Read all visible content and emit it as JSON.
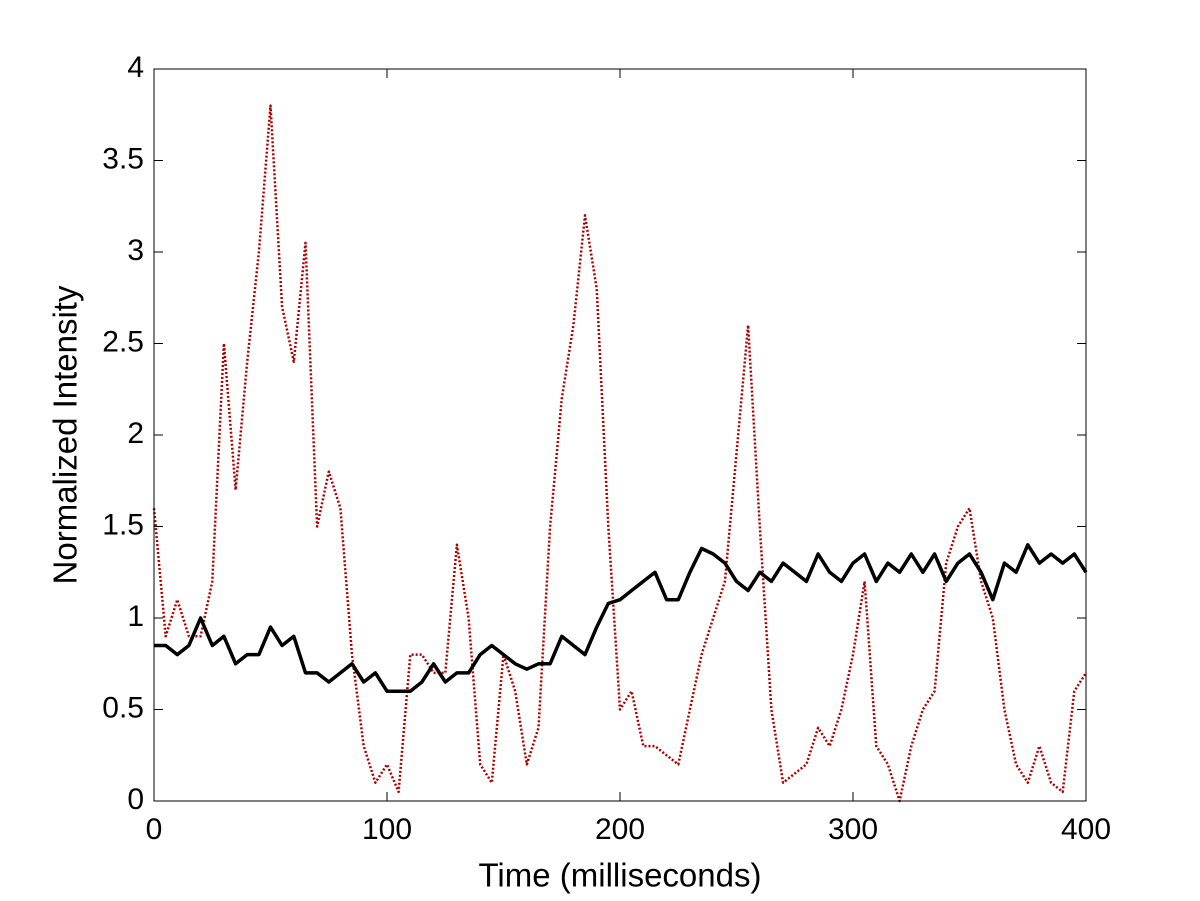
{
  "chart_data": {
    "type": "line",
    "xlabel": "Time (milliseconds)",
    "ylabel": "Normalized Intensity",
    "x": [
      0,
      5,
      10,
      15,
      20,
      25,
      30,
      35,
      40,
      45,
      50,
      55,
      60,
      65,
      70,
      75,
      80,
      85,
      90,
      95,
      100,
      105,
      110,
      115,
      120,
      125,
      130,
      135,
      140,
      145,
      150,
      155,
      160,
      165,
      170,
      175,
      180,
      185,
      190,
      195,
      200,
      205,
      210,
      215,
      220,
      225,
      230,
      235,
      240,
      245,
      250,
      255,
      260,
      265,
      270,
      275,
      280,
      285,
      290,
      295,
      300,
      305,
      310,
      315,
      320,
      325,
      330,
      335,
      340,
      345,
      350,
      355,
      360,
      365,
      370,
      375,
      380,
      385,
      390,
      395,
      400
    ],
    "series": [
      {
        "color": "#aa0000",
        "style": "dotted",
        "values": [
          1.6,
          0.9,
          1.1,
          0.9,
          0.9,
          1.2,
          2.5,
          1.7,
          2.4,
          3.0,
          3.8,
          2.7,
          2.4,
          3.05,
          1.5,
          1.8,
          1.6,
          0.8,
          0.3,
          0.1,
          0.2,
          0.05,
          0.8,
          0.8,
          0.7,
          0.7,
          1.4,
          1.0,
          0.2,
          0.1,
          0.8,
          0.6,
          0.2,
          0.4,
          1.5,
          2.2,
          2.6,
          3.2,
          2.8,
          1.5,
          0.5,
          0.6,
          0.3,
          0.3,
          0.25,
          0.2,
          0.5,
          0.8,
          1.0,
          1.2,
          1.9,
          2.6,
          1.5,
          0.5,
          0.1,
          0.15,
          0.2,
          0.4,
          0.3,
          0.5,
          0.8,
          1.2,
          0.3,
          0.2,
          0.0,
          0.3,
          0.5,
          0.6,
          1.3,
          1.5,
          1.6,
          1.2,
          1.0,
          0.5,
          0.2,
          0.1,
          0.3,
          0.1,
          0.05,
          0.6,
          0.7
        ]
      },
      {
        "color": "#000000",
        "style": "solid",
        "values": [
          0.85,
          0.85,
          0.8,
          0.85,
          1.0,
          0.85,
          0.9,
          0.75,
          0.8,
          0.8,
          0.95,
          0.85,
          0.9,
          0.7,
          0.7,
          0.65,
          0.7,
          0.75,
          0.65,
          0.7,
          0.6,
          0.6,
          0.6,
          0.65,
          0.75,
          0.65,
          0.7,
          0.7,
          0.8,
          0.85,
          0.8,
          0.75,
          0.72,
          0.75,
          0.75,
          0.9,
          0.85,
          0.8,
          0.95,
          1.08,
          1.1,
          1.15,
          1.2,
          1.25,
          1.1,
          1.1,
          1.25,
          1.38,
          1.35,
          1.3,
          1.2,
          1.15,
          1.25,
          1.2,
          1.3,
          1.25,
          1.2,
          1.35,
          1.25,
          1.2,
          1.3,
          1.35,
          1.2,
          1.3,
          1.25,
          1.35,
          1.25,
          1.35,
          1.2,
          1.3,
          1.35,
          1.25,
          1.1,
          1.3,
          1.25,
          1.4,
          1.3,
          1.35,
          1.3,
          1.35,
          1.25
        ]
      }
    ],
    "xlim": [
      0,
      400
    ],
    "xticks": [
      0,
      100,
      200,
      300,
      400
    ],
    "ylim": [
      0,
      4
    ],
    "yticks": [
      0,
      0.5,
      1,
      1.5,
      2,
      2.5,
      3,
      3.5,
      4
    ]
  }
}
